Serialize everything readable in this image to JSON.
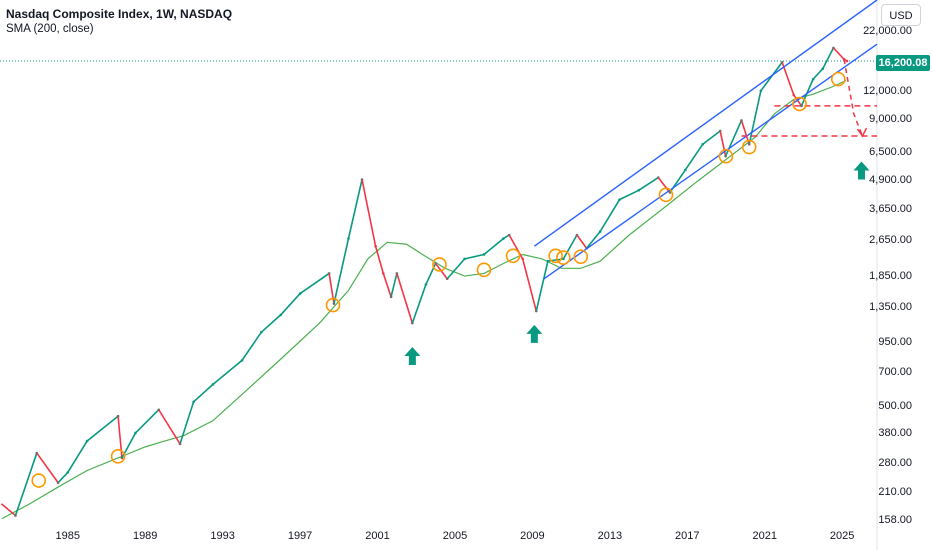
{
  "header": {
    "title": "Nasdaq Composite Index, 1W, NASDAQ",
    "indicator": "SMA (200, close)"
  },
  "currency": "USD",
  "current_price": "16,200.08",
  "colors": {
    "up": "#089981",
    "down": "#f23645",
    "sma": "#4caf50",
    "channel": "#2962ff",
    "circle": "#ff9800",
    "projection": "#f23645",
    "arrow": "#089981",
    "price_line": "#089981"
  },
  "chart_data": {
    "type": "line",
    "title": "Nasdaq Composite Index, 1W, NASDAQ",
    "scale": "log",
    "x_range": [
      1981.5,
      2026.8
    ],
    "ylim": [
      150,
      30000
    ],
    "x_tick_labels": [
      "1985",
      "1989",
      "1993",
      "1997",
      "2001",
      "2005",
      "2009",
      "2013",
      "2017",
      "2021",
      "2025"
    ],
    "x_ticks": [
      1985,
      1989,
      1993,
      1997,
      2001,
      2005,
      2009,
      2013,
      2017,
      2021,
      2025
    ],
    "y_tick_labels": [
      "22,000.00",
      "12,000.00",
      "9,000.00",
      "6,500.00",
      "4,900.00",
      "3,650.00",
      "2,650.00",
      "1,850.00",
      "1,350.00",
      "950.00",
      "700.00",
      "500.00",
      "380.00",
      "280.00",
      "210.00",
      "158.00"
    ],
    "y_ticks": [
      22000,
      12000,
      9000,
      6500,
      4900,
      3650,
      2650,
      1850,
      1350,
      950,
      700,
      500,
      380,
      280,
      210,
      158
    ],
    "series": [
      {
        "name": "Nasdaq Composite Index",
        "x": [
          1981.6,
          1982.3,
          1983.4,
          1984.5,
          1985.0,
          1986.0,
          1987.6,
          1987.8,
          1988.5,
          1989.7,
          1990.8,
          1991.5,
          1992.5,
          1994.0,
          1995.0,
          1996.0,
          1997.0,
          1998.5,
          1998.75,
          1999.5,
          2000.2,
          2000.9,
          2001.3,
          2001.7,
          2002.0,
          2002.8,
          2003.5,
          2004.0,
          2004.6,
          2005.5,
          2006.5,
          2007.5,
          2007.8,
          2008.5,
          2009.2,
          2009.8,
          2010.6,
          2011.3,
          2011.8,
          2012.5,
          2013.5,
          2014.5,
          2015.5,
          2016.1,
          2016.9,
          2017.8,
          2018.7,
          2018.98,
          2019.8,
          2020.2,
          2020.8,
          2021.9,
          2022.5,
          2022.9,
          2023.5,
          2024.0,
          2024.55,
          2025.1,
          2025.25
        ],
        "values": [
          185,
          165,
          310,
          230,
          255,
          350,
          450,
          295,
          380,
          480,
          340,
          520,
          620,
          790,
          1050,
          1250,
          1550,
          1900,
          1400,
          2700,
          4900,
          2500,
          1900,
          1500,
          1900,
          1150,
          1700,
          2100,
          1800,
          2200,
          2300,
          2700,
          2800,
          2200,
          1300,
          2150,
          2200,
          2800,
          2450,
          2900,
          4000,
          4400,
          5000,
          4300,
          5400,
          7000,
          8000,
          6200,
          8900,
          7000,
          12000,
          16000,
          11500,
          10300,
          13500,
          15000,
          18500,
          16500,
          16200
        ]
      },
      {
        "name": "SMA (200, close)",
        "x": [
          1981.6,
          1983.0,
          1984.5,
          1986.0,
          1987.8,
          1989.0,
          1990.0,
          1991.0,
          1992.5,
          1994.0,
          1996.0,
          1998.0,
          1999.5,
          2000.5,
          2001.5,
          2002.5,
          2003.5,
          2004.5,
          2005.5,
          2006.5,
          2007.5,
          2008.5,
          2009.5,
          2010.5,
          2011.5,
          2012.5,
          2014.0,
          2016.0,
          2017.5,
          2019.0,
          2020.5,
          2021.5,
          2022.5,
          2023.5,
          2024.5,
          2025.2
        ],
        "values": [
          160,
          185,
          220,
          260,
          300,
          330,
          350,
          370,
          430,
          560,
          800,
          1150,
          1600,
          2200,
          2600,
          2550,
          2250,
          2000,
          1850,
          1900,
          2100,
          2300,
          2200,
          2000,
          2000,
          2150,
          2800,
          3800,
          4800,
          6000,
          7500,
          9500,
          11000,
          11600,
          12500,
          13300
        ]
      }
    ],
    "annotations": {
      "channel_upper": [
        [
          2009.1,
          2500
        ],
        [
          2026.8,
          30000
        ]
      ],
      "channel_lower": [
        [
          2009.6,
          1800
        ],
        [
          2026.8,
          19200
        ]
      ],
      "support_levels": [
        10300,
        7600
      ],
      "projection_path": [
        [
          2025.1,
          16500
        ],
        [
          2025.6,
          9500
        ],
        [
          2026.05,
          7600
        ]
      ],
      "touch_circles": [
        [
          1983.5,
          235
        ],
        [
          1987.6,
          300
        ],
        [
          1998.7,
          1380
        ],
        [
          2004.2,
          2080
        ],
        [
          2006.5,
          1970
        ],
        [
          2008.0,
          2270
        ],
        [
          2010.2,
          2270
        ],
        [
          2010.6,
          2230
        ],
        [
          2011.5,
          2250
        ],
        [
          2015.9,
          4200
        ],
        [
          2019.0,
          6200
        ],
        [
          2020.2,
          6800
        ],
        [
          2022.8,
          10500
        ],
        [
          2024.8,
          13500
        ]
      ],
      "up_arrows": [
        [
          2002.8,
          1000
        ],
        [
          2009.1,
          1250
        ],
        [
          2026.0,
          6500
        ]
      ]
    }
  }
}
